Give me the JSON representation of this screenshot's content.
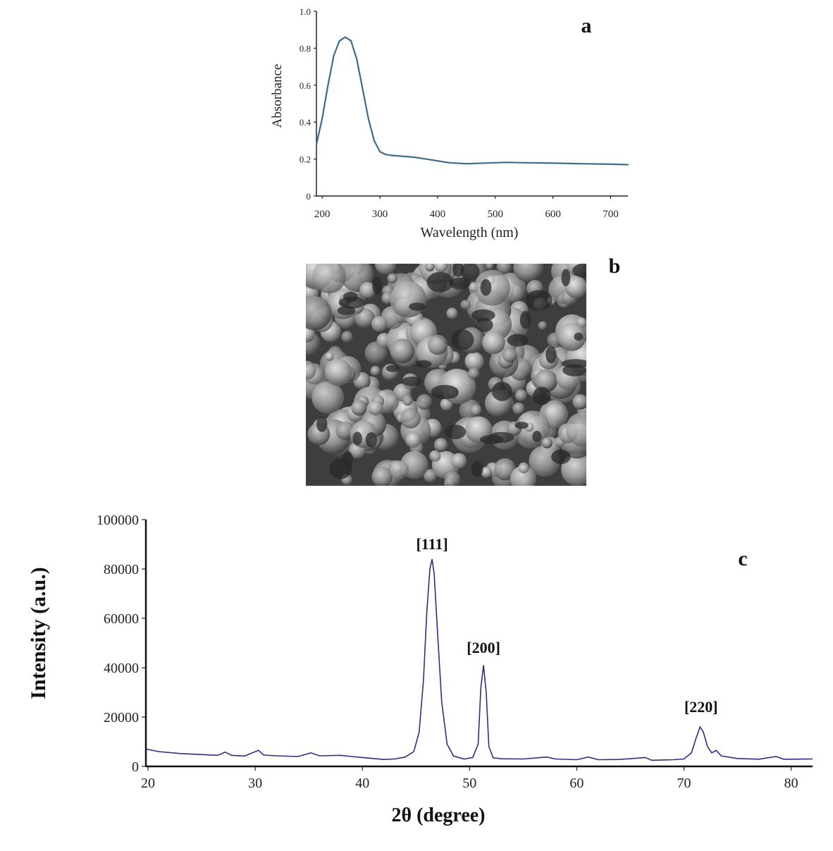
{
  "chart_data": [
    {
      "panel": "a",
      "type": "line",
      "xlabel": "Wavelength (nm)",
      "ylabel": "Absorbance",
      "xlim": [
        190,
        730
      ],
      "ylim": [
        0,
        1.0
      ],
      "x_ticks": [
        "200",
        "300",
        "400",
        "500",
        "600",
        "700"
      ],
      "y_ticks": [
        "0",
        "0.2",
        "0.4",
        "0.6",
        "0.8",
        "1.0"
      ],
      "line_color": "#3d6b8c",
      "series": [
        {
          "x": [
            190,
            200,
            210,
            220,
            230,
            240,
            250,
            260,
            270,
            280,
            290,
            300,
            310,
            320,
            340,
            360,
            380,
            400,
            420,
            450,
            500,
            520,
            550,
            600,
            650,
            700,
            730
          ],
          "values": [
            0.28,
            0.42,
            0.6,
            0.76,
            0.84,
            0.86,
            0.84,
            0.74,
            0.58,
            0.42,
            0.3,
            0.24,
            0.225,
            0.22,
            0.215,
            0.21,
            0.2,
            0.19,
            0.18,
            0.175,
            0.18,
            0.182,
            0.18,
            0.178,
            0.175,
            0.172,
            0.17
          ]
        }
      ]
    },
    {
      "panel": "c",
      "type": "line",
      "xlabel": "2θ (degree)",
      "ylabel": "Intensity (a.u.)",
      "xlim": [
        19.8,
        82
      ],
      "ylim": [
        0,
        100000
      ],
      "x_ticks": [
        "20",
        "30",
        "40",
        "50",
        "60",
        "70",
        "80"
      ],
      "y_ticks": [
        "0",
        "20000",
        "40000",
        "60000",
        "80000",
        "100000"
      ],
      "line_color": "#2e2e82",
      "annotations": [
        {
          "text": "[111]",
          "x": 46.5,
          "y": 88000
        },
        {
          "text": "[200]",
          "x": 51.3,
          "y": 46000
        },
        {
          "text": "[220]",
          "x": 71.6,
          "y": 22000
        }
      ],
      "series": [
        {
          "x": [
            19.8,
            21,
            23,
            25,
            26.5,
            27.2,
            27.8,
            29,
            30.3,
            30.8,
            32,
            34,
            35.2,
            36,
            38,
            39,
            40,
            41,
            42,
            43,
            44,
            44.8,
            45.3,
            45.7,
            46.0,
            46.3,
            46.5,
            46.7,
            47.0,
            47.4,
            47.9,
            48.5,
            49.5,
            50.3,
            50.8,
            51.05,
            51.3,
            51.55,
            51.8,
            52.2,
            53,
            55,
            57.2,
            58,
            60,
            61.1,
            62,
            64,
            66.4,
            67,
            68,
            69,
            70,
            70.7,
            71.1,
            71.5,
            71.8,
            72.2,
            72.6,
            73.0,
            73.5,
            75,
            77,
            78.6,
            79.3,
            80,
            82
          ],
          "values": [
            7000,
            6000,
            5200,
            4800,
            4500,
            5800,
            4500,
            4200,
            6500,
            4600,
            4300,
            4000,
            5500,
            4300,
            4500,
            4000,
            3600,
            3200,
            2800,
            3000,
            3800,
            6000,
            14000,
            35000,
            62000,
            80000,
            84000,
            78000,
            55000,
            26000,
            9000,
            4200,
            3000,
            3600,
            9000,
            32000,
            41000,
            30000,
            8000,
            3500,
            3100,
            3000,
            3800,
            3000,
            2700,
            3800,
            2700,
            2800,
            3600,
            2500,
            2600,
            2700,
            3000,
            5500,
            11000,
            16000,
            14000,
            8000,
            5500,
            6500,
            4200,
            3200,
            2900,
            4000,
            2900,
            2900,
            3000
          ]
        }
      ]
    }
  ],
  "labels": {
    "panel_a": "a",
    "panel_b": "b",
    "panel_c": "c"
  },
  "images": {
    "sem": "SEM micrograph of agglomerated nanoparticles"
  }
}
